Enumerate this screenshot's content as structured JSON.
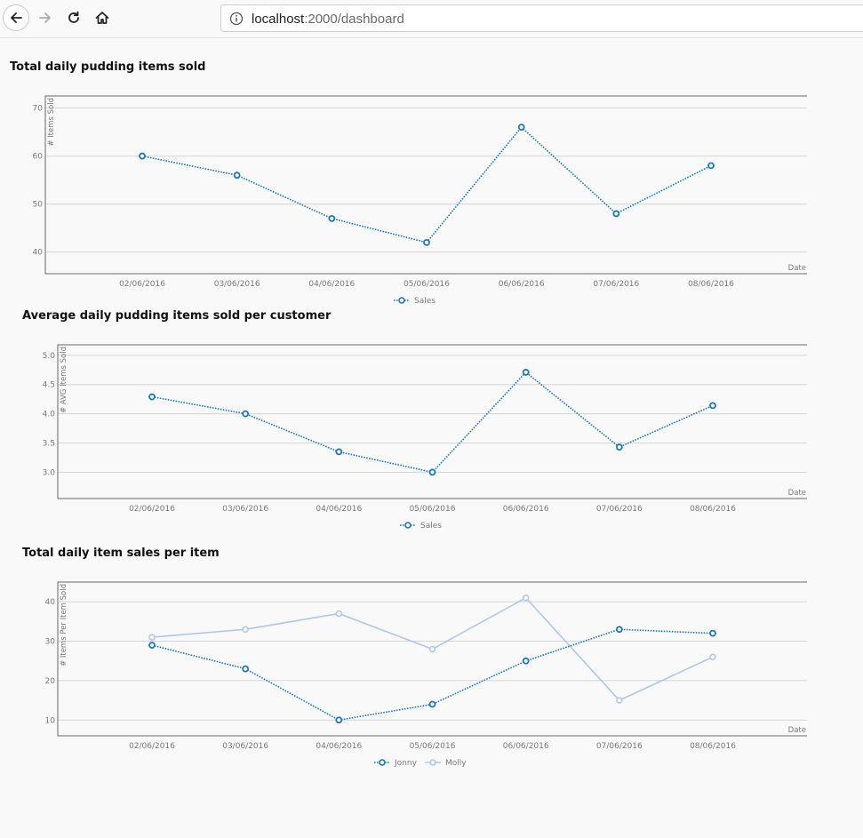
{
  "browser": {
    "url_host": "localhost",
    "url_rest": ":2000/dashboard",
    "icons": [
      "back-arrow-icon",
      "forward-arrow-icon",
      "reload-icon",
      "home-icon",
      "info-icon"
    ]
  },
  "colors": {
    "background": "#f9f9f9",
    "plot_border": "#666666",
    "grid": "#d4d4d4",
    "series_primary": "#1f77b4",
    "series_secondary": "#aec7e8",
    "tick_text": "#777777"
  },
  "chart_data": [
    {
      "type": "line",
      "title": "Total daily pudding items sold",
      "xlabel": "Date",
      "ylabel": "# Items Sold",
      "categories": [
        "02/06/2016",
        "03/06/2016",
        "04/06/2016",
        "05/06/2016",
        "06/06/2016",
        "07/06/2016",
        "08/06/2016"
      ],
      "yticks": [
        "40",
        "50",
        "60",
        "70"
      ],
      "ylim": [
        35.5,
        72.5
      ],
      "grid": true,
      "legend_position": "bottom-center",
      "series": [
        {
          "name": "Sales",
          "values": [
            60,
            56,
            47,
            42,
            66,
            48,
            58
          ],
          "style": "dotted",
          "color": "#1f77b4"
        }
      ]
    },
    {
      "type": "line",
      "title": "Average daily pudding items sold per customer",
      "xlabel": "Date",
      "ylabel": "# AVG Items Sold",
      "categories": [
        "02/06/2016",
        "03/06/2016",
        "04/06/2016",
        "05/06/2016",
        "06/06/2016",
        "07/06/2016",
        "08/06/2016"
      ],
      "yticks": [
        "3.0",
        "3.5",
        "4.0",
        "4.5",
        "5.0"
      ],
      "ylim": [
        2.55,
        5.18
      ],
      "grid": true,
      "legend_position": "bottom-center",
      "series": [
        {
          "name": "Sales",
          "values": [
            4.29,
            4.0,
            3.35,
            3.0,
            4.71,
            3.43,
            4.14
          ],
          "style": "dotted",
          "color": "#1f77b4"
        }
      ]
    },
    {
      "type": "line",
      "title": "Total daily item sales per item",
      "xlabel": "Date",
      "ylabel": "# Items Per Item Sold",
      "categories": [
        "02/06/2016",
        "03/06/2016",
        "04/06/2016",
        "05/06/2016",
        "06/06/2016",
        "07/06/2016",
        "08/06/2016"
      ],
      "yticks": [
        "10",
        "20",
        "30",
        "40"
      ],
      "ylim": [
        6,
        45
      ],
      "grid": true,
      "legend_position": "bottom-center",
      "series": [
        {
          "name": "Jonny",
          "values": [
            29,
            23,
            10,
            14,
            25,
            33,
            32
          ],
          "style": "dotted",
          "color": "#1f77b4"
        },
        {
          "name": "Molly",
          "values": [
            31,
            33,
            37,
            28,
            41,
            15,
            26
          ],
          "style": "solid",
          "color": "#aec7e8"
        }
      ]
    }
  ]
}
